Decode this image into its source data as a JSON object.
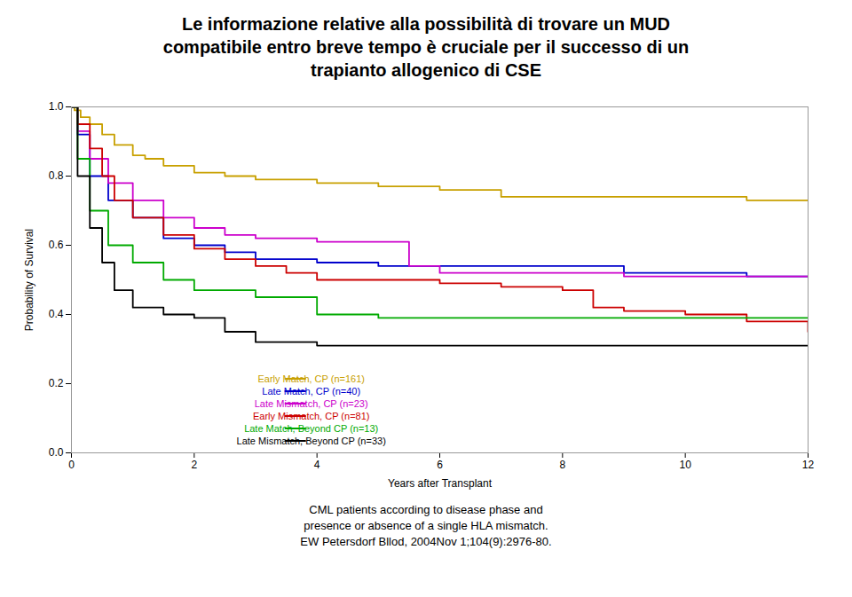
{
  "chart_data": {
    "type": "step",
    "title": "Le informazione relative alla possibilità di trovare un MUD\ncompatibile entro breve tempo è cruciale per il successo di un\ntrapianto allogenico di CSE",
    "xlabel": "Years after Transplant",
    "ylabel": "Probability of Survival",
    "xlim": [
      0,
      12
    ],
    "ylim": [
      0,
      1
    ],
    "xticks": [
      0,
      2,
      4,
      6,
      8,
      10,
      12
    ],
    "yticks": [
      {
        "value": 0,
        "label": "0.0"
      },
      0.2,
      0.4,
      0.6,
      0.8,
      {
        "value": 1,
        "label": "1.0"
      }
    ],
    "grid": false,
    "legend": "lower left",
    "annotations": [
      "CML patients according to disease phase and\npresence or absence of a single HLA mismatch.\nEW Petersdorf Bllod, 2004Nov 1;104(9):2976-80."
    ],
    "series": [
      {
        "name": "Early Match, CP (n=161)",
        "color": "#C8A000",
        "x": [
          0,
          0.05,
          0.15,
          0.3,
          0.5,
          0.7,
          1.0,
          1.2,
          1.5,
          2.0,
          2.5,
          3.0,
          4.0,
          5.0,
          6.0,
          7.0,
          8.0,
          9.0,
          10.0,
          11.0,
          12.0
        ],
        "values": [
          1.0,
          0.99,
          0.97,
          0.95,
          0.92,
          0.89,
          0.86,
          0.85,
          0.83,
          0.81,
          0.8,
          0.79,
          0.78,
          0.77,
          0.76,
          0.74,
          0.74,
          0.74,
          0.74,
          0.73,
          0.73
        ]
      },
      {
        "name": "Late Match, CP (n=40)",
        "color": "#0000CC",
        "x": [
          0,
          0.1,
          0.3,
          0.6,
          1.0,
          1.5,
          2.0,
          2.5,
          3.0,
          4.0,
          5.0,
          6.0,
          7.0,
          8.0,
          9.0,
          10.0,
          11.0,
          12.0
        ],
        "values": [
          1.0,
          0.92,
          0.8,
          0.73,
          0.68,
          0.62,
          0.6,
          0.58,
          0.56,
          0.55,
          0.54,
          0.54,
          0.54,
          0.54,
          0.52,
          0.52,
          0.51,
          0.51
        ]
      },
      {
        "name": "Late Mismatch, CP (n=23)",
        "color": "#CC00CC",
        "x": [
          0,
          0.1,
          0.3,
          0.6,
          1.0,
          1.5,
          2.0,
          2.5,
          3.0,
          3.5,
          4.0,
          4.5,
          5.0,
          5.5,
          6.0,
          7.0,
          8.0,
          9.0,
          10.0,
          11.0,
          12.0
        ],
        "values": [
          1.0,
          0.93,
          0.85,
          0.78,
          0.73,
          0.68,
          0.65,
          0.63,
          0.62,
          0.62,
          0.61,
          0.61,
          0.61,
          0.54,
          0.52,
          0.52,
          0.52,
          0.51,
          0.51,
          0.51,
          0.51
        ]
      },
      {
        "name": "Early Mismatch, CP (n=81)",
        "color": "#CC0000",
        "x": [
          0,
          0.1,
          0.3,
          0.5,
          0.7,
          1.0,
          1.5,
          2.0,
          2.5,
          3.0,
          3.5,
          4.0,
          4.5,
          5.0,
          5.5,
          6.0,
          7.0,
          8.0,
          8.5,
          9.0,
          10.0,
          11.0,
          12.0
        ],
        "values": [
          1.0,
          0.95,
          0.88,
          0.8,
          0.73,
          0.68,
          0.63,
          0.59,
          0.56,
          0.54,
          0.52,
          0.5,
          0.5,
          0.5,
          0.5,
          0.49,
          0.48,
          0.47,
          0.42,
          0.41,
          0.4,
          0.38,
          0.35
        ]
      },
      {
        "name": "Late Match, Beyond CP (n=13)",
        "color": "#00AA00",
        "x": [
          0,
          0.1,
          0.3,
          0.6,
          1.0,
          1.5,
          2.0,
          3.0,
          4.0,
          5.0,
          6.0,
          7.0,
          8.0,
          9.0,
          10.0,
          11.0,
          12.0
        ],
        "values": [
          1.0,
          0.85,
          0.7,
          0.6,
          0.55,
          0.5,
          0.47,
          0.45,
          0.4,
          0.39,
          0.39,
          0.39,
          0.39,
          0.39,
          0.39,
          0.39,
          0.39
        ]
      },
      {
        "name": "Late Mismatch, Beyond CP (n=33)",
        "color": "#000000",
        "x": [
          0,
          0.1,
          0.3,
          0.5,
          0.7,
          1.0,
          1.5,
          2.0,
          2.5,
          3.0,
          4.0,
          5.0,
          6.0,
          7.0,
          8.0,
          9.0,
          10.0,
          11.0,
          12.0
        ],
        "values": [
          1.0,
          0.8,
          0.65,
          0.55,
          0.47,
          0.42,
          0.4,
          0.39,
          0.35,
          0.32,
          0.31,
          0.31,
          0.31,
          0.31,
          0.31,
          0.31,
          0.31,
          0.31,
          0.31
        ]
      }
    ]
  }
}
